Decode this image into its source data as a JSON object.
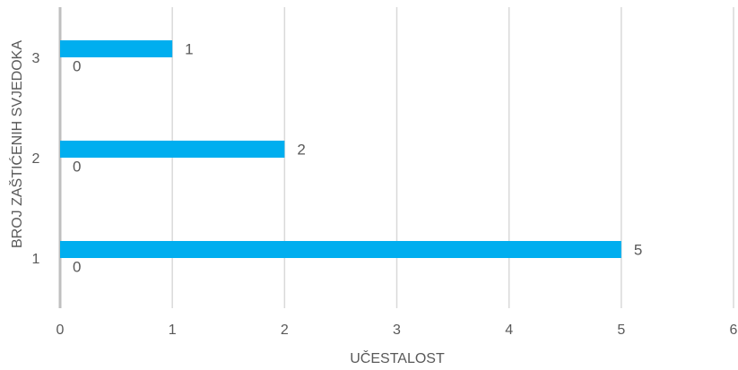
{
  "chart_data": {
    "type": "bar",
    "orientation": "horizontal",
    "categories": [
      "1",
      "2",
      "3"
    ],
    "series": [
      {
        "values": [
          5,
          2,
          1
        ],
        "color": "#00AEEF"
      },
      {
        "values": [
          0,
          0,
          0
        ],
        "color": "#00AEEF"
      }
    ],
    "xlabel": "UČESTALOST",
    "ylabel": "BROJ ZAŠTIĆENIH SVJEDOKA",
    "xlim": [
      0,
      6
    ],
    "xticks": [
      "0",
      "1",
      "2",
      "3",
      "4",
      "5",
      "6"
    ],
    "grid": true,
    "legend": "none",
    "data_labels": true
  }
}
